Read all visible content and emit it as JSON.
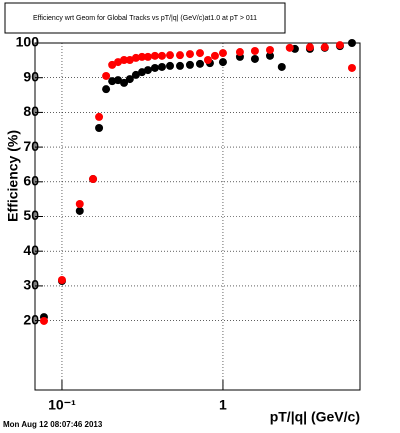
{
  "chart_data": {
    "type": "scatter",
    "title": "Efficiency wrt Geom for Global Tracks vs pT/|q| (GeV/c)at1.0 at pT > 011",
    "x_label": "pT/|q| (GeV/c)",
    "y_label": "Efficiency (%)",
    "timestamp": "Mon Aug 12 08:07:46 2013",
    "xscale": "log",
    "grid": true,
    "xlim": [
      0.068,
      7.1
    ],
    "xticks": [
      {
        "value": 0.1,
        "label": "10⁻¹"
      },
      1
    ],
    "ylim": [
      0,
      100
    ],
    "yticks": [
      20,
      30,
      40,
      50,
      60,
      70,
      80,
      90,
      100
    ],
    "series": [
      {
        "color": "#000000",
        "x": [
          0.0773,
          0.1,
          0.129,
          0.156,
          0.17,
          0.188,
          0.205,
          0.223,
          0.243,
          0.264,
          0.288,
          0.314,
          0.342,
          0.378,
          0.418,
          0.469,
          0.541,
          0.624,
          0.72,
          0.83,
          1.0,
          1.275,
          1.58,
          1.96,
          2.32,
          2.8,
          3.47,
          4.29,
          5.33,
          6.33
        ],
        "values": [
          21,
          31.4,
          51.6,
          60.8,
          75.5,
          86.7,
          89,
          89.3,
          88.5,
          89.6,
          90.8,
          91.6,
          92.2,
          92.8,
          93.1,
          93.4,
          93.4,
          93.7,
          94,
          94.2,
          94.5,
          96,
          95.4,
          96.3,
          93.1,
          98.3,
          98.3,
          98.6,
          99.1,
          100
        ]
      },
      {
        "color": "#ff0000",
        "x": [
          0.0773,
          0.1,
          0.129,
          0.156,
          0.17,
          0.188,
          0.205,
          0.223,
          0.243,
          0.264,
          0.288,
          0.314,
          0.342,
          0.378,
          0.418,
          0.469,
          0.541,
          0.624,
          0.72,
          0.807,
          0.892,
          1.0,
          1.275,
          1.58,
          1.96,
          2.6,
          3.47,
          4.29,
          5.33,
          6.33
        ],
        "values": [
          19.9,
          31.7,
          53.6,
          60.8,
          78.7,
          90.5,
          93.7,
          94.5,
          95.1,
          95.1,
          95.7,
          96,
          96,
          96.3,
          96.3,
          96.5,
          96.5,
          96.8,
          97.1,
          95.1,
          96.3,
          97.1,
          97.4,
          97.7,
          98,
          98.6,
          98.8,
          98.8,
          99.4,
          92.8
        ]
      }
    ]
  }
}
